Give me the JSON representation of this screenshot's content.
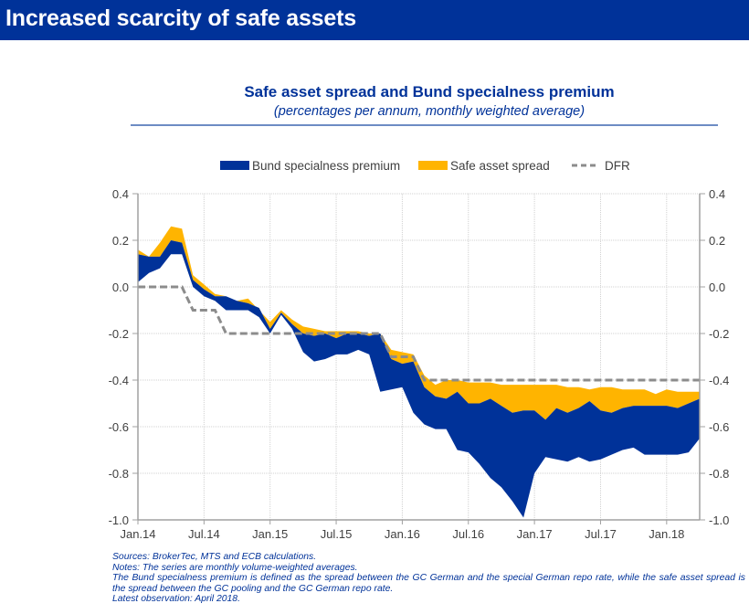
{
  "header": {
    "title": "Increased scarcity of safe assets"
  },
  "chart_data": {
    "type": "area",
    "title": "Safe asset spread and Bund specialness premium",
    "subtitle": "(percentages per annum, monthly weighted average)",
    "xlabel": "",
    "ylabel": "",
    "ylim": [
      -1.0,
      0.4
    ],
    "yticks": [
      0.4,
      0.2,
      0.0,
      -0.2,
      -0.4,
      -0.6,
      -0.8,
      -1.0
    ],
    "ytick_labels": [
      "0.4",
      "0.2",
      "0.0",
      "-0.2",
      "-0.4",
      "-0.6",
      "-0.8",
      "-1.0"
    ],
    "xtick_labels": [
      "Jan.14",
      "Jul.14",
      "Jan.15",
      "Jul.15",
      "Jan.16",
      "Jul.16",
      "Jan.17",
      "Jul.17",
      "Jan.18"
    ],
    "xtick_month_index": [
      0,
      6,
      12,
      18,
      24,
      30,
      36,
      42,
      48
    ],
    "x_start": "Jan.14",
    "x_end": "Apr.18",
    "grid": true,
    "legend_position": "top",
    "legend": [
      {
        "name": "Bund specialness premium",
        "color": "#003299",
        "style": "area"
      },
      {
        "name": "Safe asset spread",
        "color": "#ffb400",
        "style": "area"
      },
      {
        "name": "DFR",
        "color": "#808080",
        "style": "dashed-line"
      }
    ],
    "colors": {
      "bund": "#003299",
      "safe": "#ffb400",
      "dfr": "#8c8c8c",
      "grid": "#d0d0d0",
      "axis": "#a0a0a0"
    },
    "series": [
      {
        "name": "GC pooling rate (top of safe asset spread band)",
        "values": [
          0.16,
          0.13,
          0.19,
          0.26,
          0.25,
          0.05,
          0.01,
          -0.03,
          -0.04,
          -0.06,
          -0.05,
          -0.1,
          -0.15,
          -0.1,
          -0.14,
          -0.17,
          -0.18,
          -0.19,
          -0.19,
          -0.19,
          -0.19,
          -0.2,
          -0.2,
          -0.27,
          -0.28,
          -0.29,
          -0.38,
          -0.42,
          -0.4,
          -0.4,
          -0.41,
          -0.41,
          -0.41,
          -0.42,
          -0.42,
          -0.42,
          -0.42,
          -0.42,
          -0.42,
          -0.43,
          -0.43,
          -0.44,
          -0.43,
          -0.43,
          -0.44,
          -0.44,
          -0.44,
          -0.46,
          -0.44,
          -0.45,
          -0.45,
          -0.45
        ]
      },
      {
        "name": "GC German rate (boundary between bands)",
        "values": [
          0.14,
          0.13,
          0.13,
          0.2,
          0.19,
          0.03,
          -0.01,
          -0.04,
          -0.04,
          -0.06,
          -0.07,
          -0.09,
          -0.18,
          -0.11,
          -0.16,
          -0.2,
          -0.21,
          -0.2,
          -0.22,
          -0.2,
          -0.2,
          -0.21,
          -0.2,
          -0.31,
          -0.33,
          -0.32,
          -0.43,
          -0.47,
          -0.48,
          -0.45,
          -0.5,
          -0.5,
          -0.48,
          -0.51,
          -0.54,
          -0.53,
          -0.53,
          -0.57,
          -0.52,
          -0.54,
          -0.52,
          -0.49,
          -0.53,
          -0.54,
          -0.52,
          -0.51,
          -0.51,
          -0.51,
          -0.51,
          -0.52,
          -0.5,
          -0.48
        ]
      },
      {
        "name": "Special German repo rate (bottom of Bund specialness band)",
        "values": [
          0.02,
          0.06,
          0.08,
          0.14,
          0.14,
          0.0,
          -0.04,
          -0.06,
          -0.1,
          -0.1,
          -0.1,
          -0.13,
          -0.2,
          -0.12,
          -0.18,
          -0.28,
          -0.32,
          -0.31,
          -0.29,
          -0.29,
          -0.27,
          -0.29,
          -0.45,
          -0.44,
          -0.43,
          -0.54,
          -0.59,
          -0.61,
          -0.61,
          -0.7,
          -0.71,
          -0.76,
          -0.82,
          -0.86,
          -0.92,
          -0.99,
          -0.8,
          -0.73,
          -0.74,
          -0.75,
          -0.73,
          -0.75,
          -0.74,
          -0.72,
          -0.7,
          -0.69,
          -0.72,
          -0.72,
          -0.72,
          -0.72,
          -0.71,
          -0.65
        ]
      },
      {
        "name": "DFR",
        "values": [
          0.0,
          0.0,
          0.0,
          0.0,
          0.0,
          -0.1,
          -0.1,
          -0.1,
          -0.2,
          -0.2,
          -0.2,
          -0.2,
          -0.2,
          -0.2,
          -0.2,
          -0.2,
          -0.2,
          -0.2,
          -0.2,
          -0.2,
          -0.2,
          -0.2,
          -0.2,
          -0.3,
          -0.3,
          -0.3,
          -0.4,
          -0.4,
          -0.4,
          -0.4,
          -0.4,
          -0.4,
          -0.4,
          -0.4,
          -0.4,
          -0.4,
          -0.4,
          -0.4,
          -0.4,
          -0.4,
          -0.4,
          -0.4,
          -0.4,
          -0.4,
          -0.4,
          -0.4,
          -0.4,
          -0.4,
          -0.4,
          -0.4,
          -0.4,
          -0.4
        ]
      }
    ]
  },
  "notes": {
    "sources": "Sources: BrokerTec, MTS and ECB calculations.",
    "notes": "Notes: The series are monthly volume-weighted averages.",
    "definition": "The Bund specialness premium is defined as the spread between the GC German and the special German repo rate, while the safe asset spread is the spread between the GC pooling and the GC German repo rate.",
    "latest": "Latest observation: April 2018."
  }
}
